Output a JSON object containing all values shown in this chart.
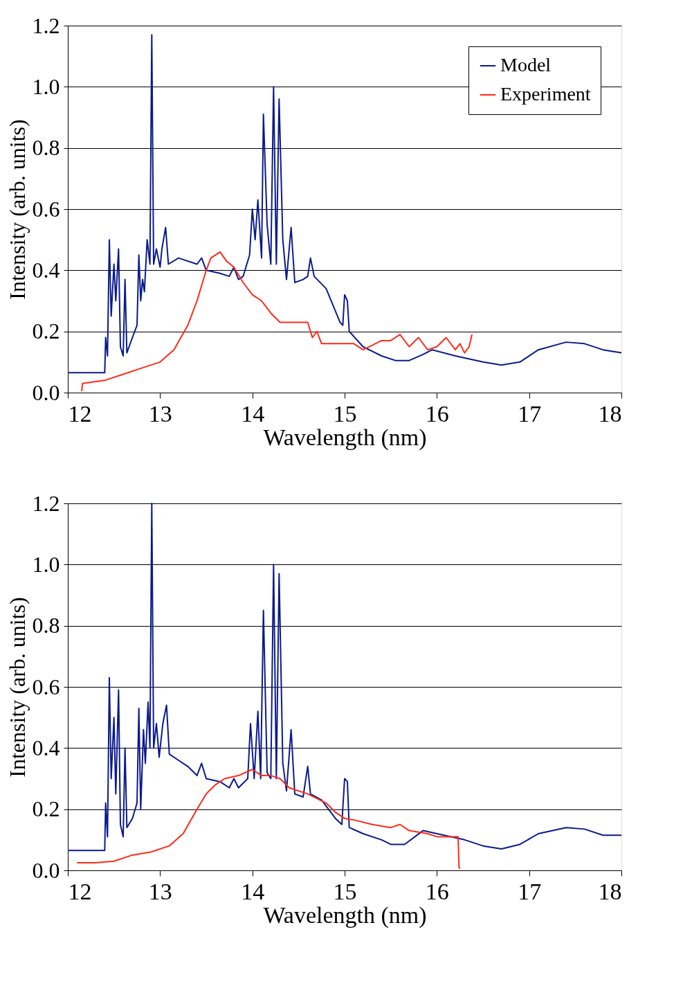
{
  "chart_data": [
    {
      "type": "line",
      "xlabel": "Wavelength (nm)",
      "ylabel": "Intensity (arb. units)",
      "xlim": [
        12,
        18
      ],
      "xticks": [
        12,
        13,
        14,
        15,
        16,
        17,
        18
      ],
      "ylim": [
        0,
        1.2
      ],
      "yticks": [
        {
          "value": 0,
          "label": "0.0"
        },
        {
          "value": 0.2,
          "label": "0.2"
        },
        {
          "value": 0.4,
          "label": "0.4"
        },
        {
          "value": 0.6,
          "label": "0.6"
        },
        {
          "value": 0.8,
          "label": "0.8"
        },
        {
          "value": 1.0,
          "label": "1.0"
        },
        {
          "value": 1.2,
          "label": "1.2"
        }
      ],
      "grid": "y",
      "legend": "top right",
      "series": [
        {
          "name": "Model",
          "color": "#0a1a8c",
          "x": [
            12.0,
            12.4,
            12.41,
            12.43,
            12.45,
            12.47,
            12.5,
            12.52,
            12.55,
            12.57,
            12.6,
            12.62,
            12.64,
            12.7,
            12.75,
            12.77,
            12.79,
            12.81,
            12.83,
            12.86,
            12.89,
            12.91,
            12.93,
            12.96,
            13.0,
            13.02,
            13.06,
            13.09,
            13.2,
            13.4,
            13.45,
            13.5,
            13.65,
            13.75,
            13.8,
            13.85,
            13.9,
            13.97,
            14.0,
            14.03,
            14.06,
            14.1,
            14.12,
            14.16,
            14.2,
            14.23,
            14.26,
            14.29,
            14.33,
            14.37,
            14.42,
            14.46,
            14.55,
            14.6,
            14.63,
            14.67,
            14.8,
            14.95,
            14.98,
            15.0,
            15.03,
            15.05,
            15.2,
            15.4,
            15.55,
            15.7,
            15.85,
            15.95,
            16.2,
            16.5,
            16.7,
            16.9,
            17.1,
            17.4,
            17.6,
            17.8,
            18.0
          ],
          "values": [
            0.065,
            0.065,
            0.18,
            0.12,
            0.5,
            0.25,
            0.42,
            0.3,
            0.47,
            0.15,
            0.12,
            0.37,
            0.13,
            0.18,
            0.22,
            0.45,
            0.3,
            0.37,
            0.33,
            0.5,
            0.42,
            1.17,
            0.42,
            0.47,
            0.41,
            0.47,
            0.54,
            0.42,
            0.44,
            0.42,
            0.44,
            0.4,
            0.39,
            0.38,
            0.41,
            0.37,
            0.38,
            0.45,
            0.6,
            0.5,
            0.63,
            0.44,
            0.91,
            0.55,
            0.42,
            1.0,
            0.42,
            0.96,
            0.5,
            0.37,
            0.54,
            0.36,
            0.37,
            0.38,
            0.44,
            0.38,
            0.34,
            0.23,
            0.22,
            0.32,
            0.3,
            0.2,
            0.15,
            0.12,
            0.105,
            0.105,
            0.125,
            0.14,
            0.12,
            0.1,
            0.09,
            0.1,
            0.14,
            0.165,
            0.16,
            0.14,
            0.13
          ]
        },
        {
          "name": "Experiment",
          "color": "#ff2a1a",
          "x": [
            12.15,
            12.16,
            12.4,
            12.6,
            12.8,
            13.0,
            13.15,
            13.3,
            13.4,
            13.5,
            13.55,
            13.65,
            13.72,
            13.8,
            13.9,
            14.0,
            14.1,
            14.2,
            14.3,
            14.5,
            14.6,
            14.65,
            14.7,
            14.75,
            14.9,
            15.1,
            15.2,
            15.3,
            15.4,
            15.5,
            15.6,
            15.7,
            15.8,
            15.9,
            16.0,
            16.1,
            16.2,
            16.25,
            16.3,
            16.35,
            16.38
          ],
          "values": [
            0.005,
            0.03,
            0.04,
            0.06,
            0.08,
            0.1,
            0.14,
            0.22,
            0.3,
            0.4,
            0.44,
            0.46,
            0.43,
            0.41,
            0.36,
            0.32,
            0.3,
            0.26,
            0.23,
            0.23,
            0.23,
            0.18,
            0.2,
            0.16,
            0.16,
            0.16,
            0.14,
            0.155,
            0.17,
            0.17,
            0.19,
            0.15,
            0.18,
            0.14,
            0.15,
            0.18,
            0.14,
            0.16,
            0.13,
            0.15,
            0.19
          ]
        }
      ]
    },
    {
      "type": "line",
      "xlabel": "Wavelength (nm)",
      "ylabel": "Intensity (arb. units)",
      "xlim": [
        12,
        18
      ],
      "xticks": [
        12,
        13,
        14,
        15,
        16,
        17,
        18
      ],
      "ylim": [
        0,
        1.2
      ],
      "yticks": [
        {
          "value": 0,
          "label": "0.0"
        },
        {
          "value": 0.2,
          "label": "0.2"
        },
        {
          "value": 0.4,
          "label": "0.4"
        },
        {
          "value": 0.6,
          "label": "0.6"
        },
        {
          "value": 0.8,
          "label": "0.8"
        },
        {
          "value": 1.0,
          "label": "1.0"
        },
        {
          "value": 1.2,
          "label": "1.2"
        }
      ],
      "grid": "y",
      "legend": "top right",
      "series": [
        {
          "name": "Model",
          "color": "#0a1a8c",
          "x": [
            12.0,
            12.4,
            12.41,
            12.43,
            12.45,
            12.47,
            12.5,
            12.52,
            12.55,
            12.57,
            12.6,
            12.62,
            12.64,
            12.7,
            12.75,
            12.77,
            12.79,
            12.82,
            12.84,
            12.87,
            12.89,
            12.91,
            12.93,
            12.96,
            12.99,
            13.03,
            13.07,
            13.1,
            13.3,
            13.4,
            13.45,
            13.5,
            13.65,
            13.75,
            13.8,
            13.85,
            13.95,
            13.98,
            14.02,
            14.06,
            14.09,
            14.12,
            14.16,
            14.2,
            14.23,
            14.26,
            14.29,
            14.33,
            14.37,
            14.42,
            14.46,
            14.55,
            14.6,
            14.63,
            14.75,
            14.9,
            14.97,
            15.0,
            15.03,
            15.05,
            15.2,
            15.4,
            15.5,
            15.65,
            15.85,
            16.0,
            16.3,
            16.5,
            16.7,
            16.9,
            17.1,
            17.4,
            17.6,
            17.8,
            18.0
          ],
          "values": [
            0.065,
            0.065,
            0.22,
            0.11,
            0.63,
            0.3,
            0.5,
            0.25,
            0.59,
            0.15,
            0.11,
            0.4,
            0.14,
            0.17,
            0.22,
            0.53,
            0.2,
            0.46,
            0.35,
            0.55,
            0.4,
            1.2,
            0.4,
            0.48,
            0.37,
            0.48,
            0.54,
            0.38,
            0.34,
            0.31,
            0.35,
            0.3,
            0.29,
            0.27,
            0.3,
            0.27,
            0.3,
            0.48,
            0.3,
            0.52,
            0.3,
            0.85,
            0.32,
            0.3,
            1.0,
            0.3,
            0.97,
            0.35,
            0.26,
            0.46,
            0.25,
            0.24,
            0.34,
            0.25,
            0.23,
            0.17,
            0.15,
            0.3,
            0.29,
            0.14,
            0.12,
            0.1,
            0.085,
            0.085,
            0.13,
            0.12,
            0.1,
            0.08,
            0.07,
            0.085,
            0.12,
            0.14,
            0.135,
            0.115,
            0.115
          ]
        },
        {
          "name": "Experiment",
          "color": "#ff2a1a",
          "x": [
            12.1,
            12.3,
            12.5,
            12.7,
            12.9,
            13.1,
            13.25,
            13.4,
            13.5,
            13.6,
            13.7,
            13.85,
            14.0,
            14.1,
            14.2,
            14.3,
            14.4,
            14.6,
            14.8,
            14.9,
            15.0,
            15.1,
            15.3,
            15.5,
            15.6,
            15.7,
            15.9,
            16.0,
            16.2,
            16.23,
            16.24,
            16.25
          ],
          "values": [
            0.025,
            0.025,
            0.03,
            0.05,
            0.06,
            0.08,
            0.12,
            0.2,
            0.25,
            0.28,
            0.3,
            0.31,
            0.33,
            0.31,
            0.31,
            0.3,
            0.27,
            0.25,
            0.22,
            0.19,
            0.17,
            0.165,
            0.15,
            0.14,
            0.15,
            0.13,
            0.12,
            0.11,
            0.11,
            0.11,
            0.01,
            0.005
          ]
        }
      ]
    }
  ]
}
